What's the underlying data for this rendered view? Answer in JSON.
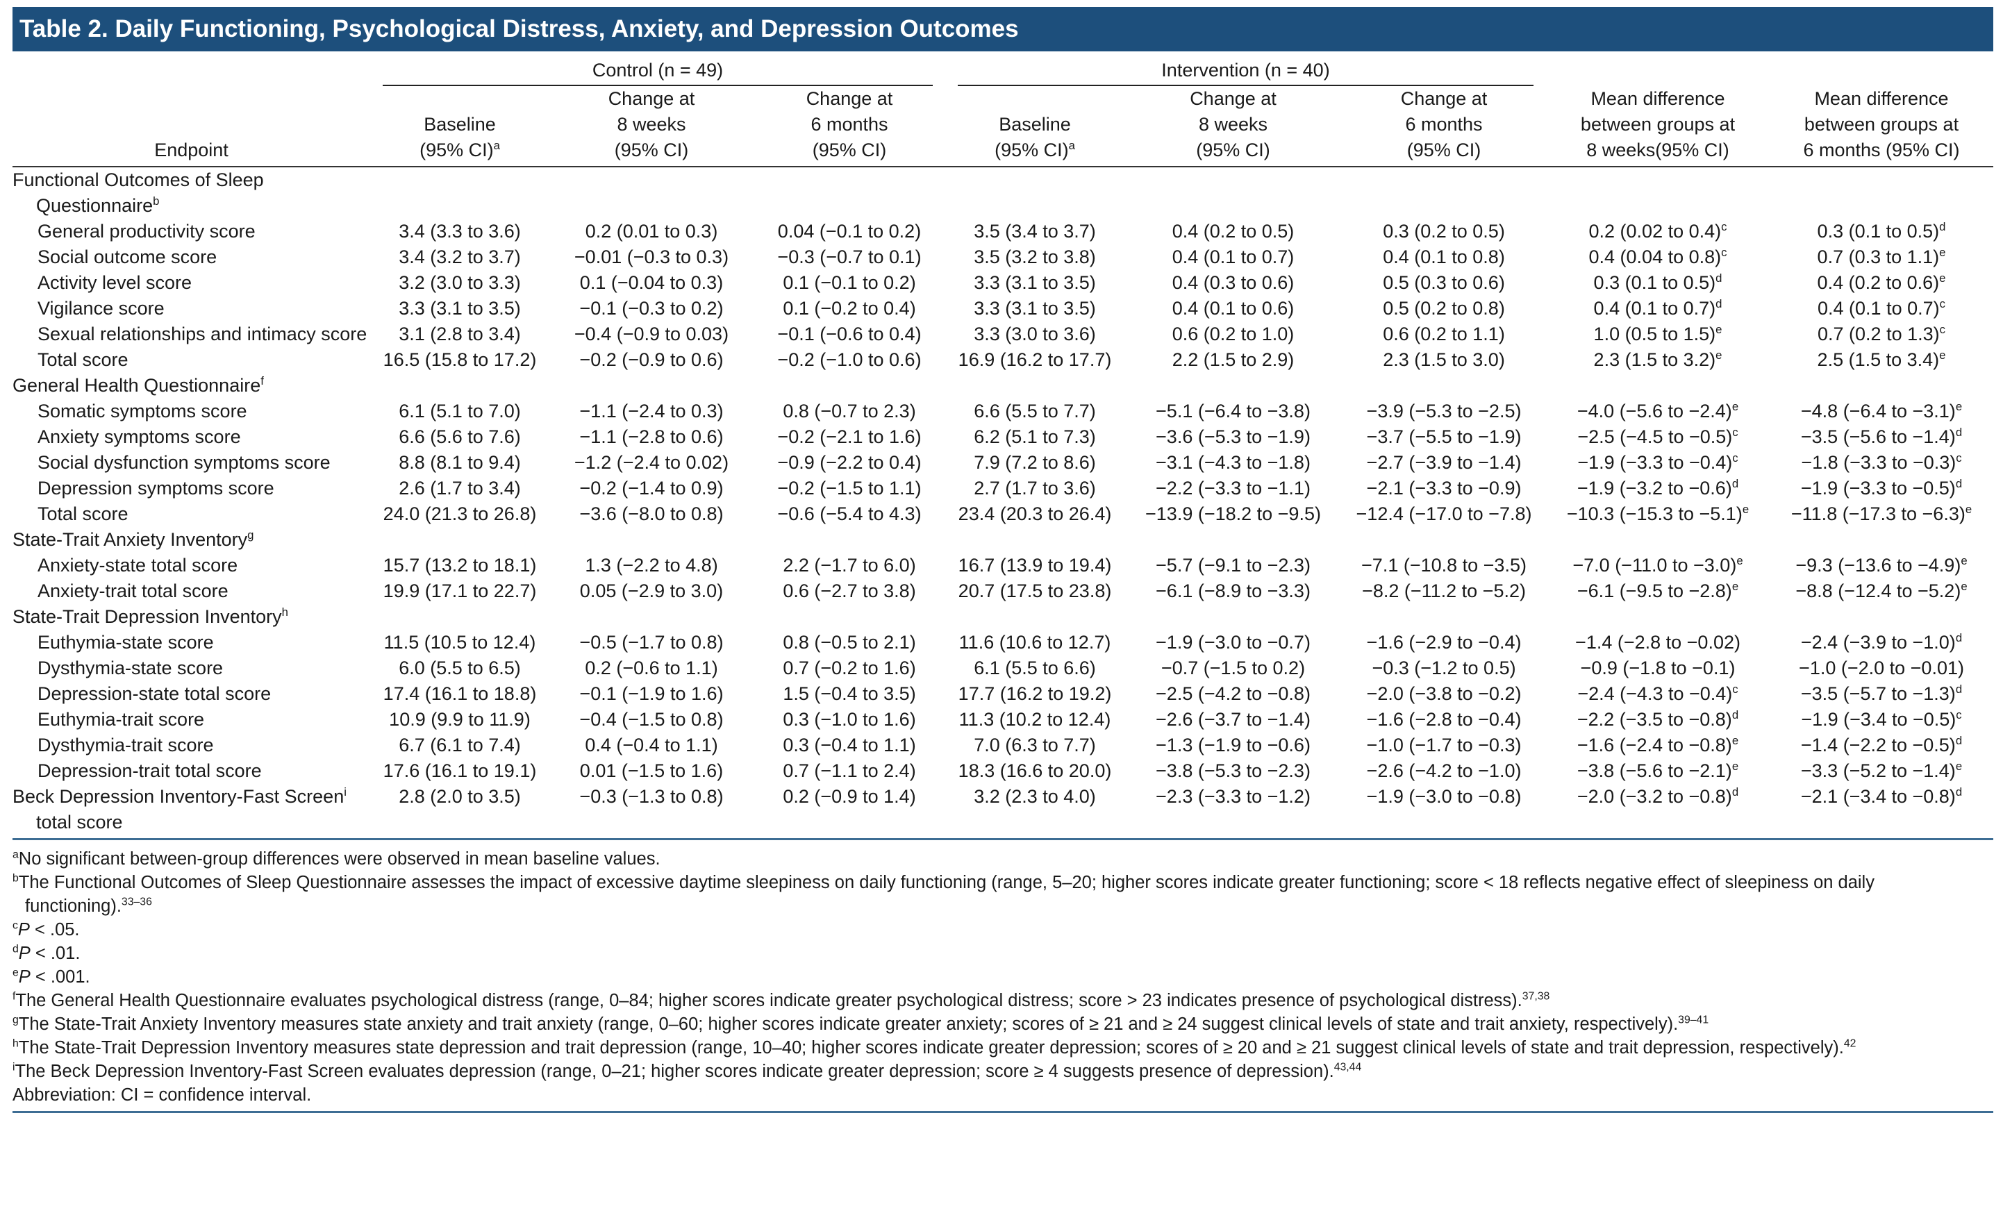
{
  "title": "Table 2. Daily Functioning, Psychological Distress, Anxiety, and Depression Outcomes",
  "table": {
    "groups": [
      "Control (n = 49)",
      "Intervention (n = 40)"
    ],
    "columns": [
      {
        "lines": [
          "Endpoint"
        ]
      },
      {
        "lines": [
          "Baseline",
          "(95% CI)"
        ],
        "sup": "a"
      },
      {
        "lines": [
          "Change at",
          "8 weeks",
          "(95% CI)"
        ]
      },
      {
        "lines": [
          "Change at",
          "6 months",
          "(95% CI)"
        ]
      },
      {
        "lines": [
          "Baseline",
          "(95% CI)"
        ],
        "sup": "a"
      },
      {
        "lines": [
          "Change at",
          "8 weeks",
          "(95% CI)"
        ]
      },
      {
        "lines": [
          "Change at",
          "6 months",
          "(95% CI)"
        ]
      },
      {
        "lines": [
          "Mean difference",
          "between groups at",
          "8 weeks(95% CI)"
        ]
      },
      {
        "lines": [
          "Mean difference",
          "between groups at",
          "6 months (95% CI)"
        ]
      }
    ],
    "rows": [
      {
        "section": {
          "text": "Functional Outcomes of Sleep Questionnaire",
          "sup": "b"
        }
      },
      {
        "label": "General productivity score",
        "cells": [
          "3.4 (3.3 to 3.6)",
          "0.2 (0.01 to 0.3)",
          "0.04 (−0.1 to 0.2)",
          "3.5 (3.4 to 3.7)",
          "0.4 (0.2 to 0.5)",
          "0.3 (0.2 to 0.5)",
          {
            "text": "0.2 (0.02 to 0.4)",
            "sup": "c"
          },
          {
            "text": "0.3 (0.1 to 0.5)",
            "sup": "d"
          }
        ]
      },
      {
        "label": "Social outcome score",
        "cells": [
          "3.4 (3.2 to 3.7)",
          "−0.01 (−0.3 to 0.3)",
          "−0.3 (−0.7 to 0.1)",
          "3.5 (3.2 to 3.8)",
          "0.4 (0.1 to 0.7)",
          "0.4 (0.1 to 0.8)",
          {
            "text": "0.4 (0.04 to 0.8)",
            "sup": "c"
          },
          {
            "text": "0.7 (0.3 to 1.1)",
            "sup": "e"
          }
        ]
      },
      {
        "label": "Activity level score",
        "cells": [
          "3.2 (3.0 to 3.3)",
          "0.1 (−0.04 to 0.3)",
          "0.1 (−0.1 to 0.2)",
          "3.3 (3.1 to 3.5)",
          "0.4 (0.3 to 0.6)",
          "0.5 (0.3 to 0.6)",
          {
            "text": "0.3 (0.1 to 0.5)",
            "sup": "d"
          },
          {
            "text": "0.4 (0.2 to 0.6)",
            "sup": "e"
          }
        ]
      },
      {
        "label": "Vigilance score",
        "cells": [
          "3.3 (3.1 to 3.5)",
          "−0.1 (−0.3 to 0.2)",
          "0.1 (−0.2 to 0.4)",
          "3.3 (3.1 to 3.5)",
          "0.4 (0.1 to 0.6)",
          "0.5 (0.2 to 0.8)",
          {
            "text": "0.4 (0.1 to 0.7)",
            "sup": "d"
          },
          {
            "text": "0.4 (0.1 to 0.7)",
            "sup": "c"
          }
        ]
      },
      {
        "label": "Sexual relationships and intimacy score",
        "cells": [
          "3.1 (2.8 to 3.4)",
          "−0.4 (−0.9 to 0.03)",
          "−0.1 (−0.6 to 0.4)",
          "3.3 (3.0 to 3.6)",
          "0.6 (0.2 to 1.0)",
          "0.6 (0.2 to 1.1)",
          {
            "text": "1.0 (0.5 to 1.5)",
            "sup": "e"
          },
          {
            "text": "0.7 (0.2 to 1.3)",
            "sup": "c"
          }
        ]
      },
      {
        "label": "Total score",
        "cells": [
          "16.5 (15.8 to 17.2)",
          "−0.2 (−0.9 to 0.6)",
          "−0.2 (−1.0 to 0.6)",
          "16.9 (16.2 to 17.7)",
          "2.2 (1.5 to 2.9)",
          "2.3 (1.5 to 3.0)",
          {
            "text": "2.3 (1.5 to 3.2)",
            "sup": "e"
          },
          {
            "text": "2.5 (1.5 to 3.4)",
            "sup": "e"
          }
        ]
      },
      {
        "section": {
          "text": "General Health Questionnaire",
          "sup": "f"
        }
      },
      {
        "label": "Somatic symptoms score",
        "cells": [
          "6.1 (5.1 to 7.0)",
          "−1.1 (−2.4 to 0.3)",
          "0.8 (−0.7 to 2.3)",
          "6.6 (5.5 to 7.7)",
          "−5.1 (−6.4 to −3.8)",
          "−3.9 (−5.3 to −2.5)",
          {
            "text": "−4.0 (−5.6 to −2.4)",
            "sup": "e"
          },
          {
            "text": "−4.8 (−6.4 to −3.1)",
            "sup": "e"
          }
        ]
      },
      {
        "label": "Anxiety symptoms score",
        "cells": [
          "6.6 (5.6 to 7.6)",
          "−1.1 (−2.8 to 0.6)",
          "−0.2 (−2.1 to 1.6)",
          "6.2 (5.1 to 7.3)",
          "−3.6 (−5.3 to −1.9)",
          "−3.7 (−5.5 to −1.9)",
          {
            "text": "−2.5 (−4.5 to −0.5)",
            "sup": "c"
          },
          {
            "text": "−3.5 (−5.6 to −1.4)",
            "sup": "d"
          }
        ]
      },
      {
        "label": "Social dysfunction symptoms score",
        "cells": [
          "8.8 (8.1 to 9.4)",
          "−1.2 (−2.4 to 0.02)",
          "−0.9 (−2.2 to 0.4)",
          "7.9 (7.2 to 8.6)",
          "−3.1 (−4.3 to −1.8)",
          "−2.7 (−3.9 to −1.4)",
          {
            "text": "−1.9 (−3.3 to −0.4)",
            "sup": "c"
          },
          {
            "text": "−1.8 (−3.3 to −0.3)",
            "sup": "c"
          }
        ]
      },
      {
        "label": "Depression symptoms score",
        "cells": [
          "2.6 (1.7 to 3.4)",
          "−0.2 (−1.4 to 0.9)",
          "−0.2 (−1.5 to 1.1)",
          "2.7 (1.7 to 3.6)",
          "−2.2 (−3.3 to −1.1)",
          "−2.1 (−3.3 to −0.9)",
          {
            "text": "−1.9 (−3.2 to −0.6)",
            "sup": "d"
          },
          {
            "text": "−1.9 (−3.3 to −0.5)",
            "sup": "d"
          }
        ]
      },
      {
        "label": "Total score",
        "cells": [
          "24.0 (21.3 to 26.8)",
          "−3.6 (−8.0 to 0.8)",
          "−0.6 (−5.4 to 4.3)",
          "23.4 (20.3 to 26.4)",
          "−13.9 (−18.2 to −9.5)",
          "−12.4 (−17.0 to −7.8)",
          {
            "text": "−10.3 (−15.3 to −5.1)",
            "sup": "e"
          },
          {
            "text": "−11.8 (−17.3 to −6.3)",
            "sup": "e"
          }
        ]
      },
      {
        "section": {
          "text": "State-Trait Anxiety Inventory",
          "sup": "g"
        }
      },
      {
        "label": "Anxiety-state total score",
        "cells": [
          "15.7 (13.2 to 18.1)",
          "1.3 (−2.2 to 4.8)",
          "2.2 (−1.7 to 6.0)",
          "16.7 (13.9 to 19.4)",
          "−5.7 (−9.1 to −2.3)",
          "−7.1 (−10.8 to −3.5)",
          {
            "text": "−7.0 (−11.0 to −3.0)",
            "sup": "e"
          },
          {
            "text": "−9.3 (−13.6 to −4.9)",
            "sup": "e"
          }
        ]
      },
      {
        "label": "Anxiety-trait total score",
        "cells": [
          "19.9 (17.1 to 22.7)",
          "0.05 (−2.9 to 3.0)",
          "0.6 (−2.7 to 3.8)",
          "20.7 (17.5 to 23.8)",
          "−6.1 (−8.9 to −3.3)",
          "−8.2 (−11.2 to −5.2)",
          {
            "text": "−6.1 (−9.5 to −2.8)",
            "sup": "e"
          },
          {
            "text": "−8.8 (−12.4 to −5.2)",
            "sup": "e"
          }
        ]
      },
      {
        "section": {
          "text": "State-Trait Depression Inventory",
          "sup": "h"
        }
      },
      {
        "label": "Euthymia-state score",
        "cells": [
          "11.5 (10.5 to 12.4)",
          "−0.5 (−1.7 to 0.8)",
          "0.8 (−0.5 to 2.1)",
          "11.6 (10.6 to 12.7)",
          "−1.9 (−3.0 to −0.7)",
          "−1.6 (−2.9 to −0.4)",
          "−1.4 (−2.8 to −0.02)",
          {
            "text": "−2.4 (−3.9 to −1.0)",
            "sup": "d"
          }
        ]
      },
      {
        "label": "Dysthymia-state score",
        "cells": [
          "6.0 (5.5 to 6.5)",
          "0.2 (−0.6 to 1.1)",
          "0.7 (−0.2 to 1.6)",
          "6.1 (5.5 to 6.6)",
          "−0.7 (−1.5 to 0.2)",
          "−0.3 (−1.2 to 0.5)",
          "−0.9 (−1.8 to −0.1)",
          "−1.0 (−2.0 to −0.01)"
        ]
      },
      {
        "label": "Depression-state total score",
        "cells": [
          "17.4 (16.1 to 18.8)",
          "−0.1 (−1.9 to 1.6)",
          "1.5 (−0.4 to 3.5)",
          "17.7 (16.2 to 19.2)",
          "−2.5 (−4.2 to −0.8)",
          "−2.0 (−3.8 to −0.2)",
          {
            "text": "−2.4 (−4.3 to −0.4)",
            "sup": "c"
          },
          {
            "text": "−3.5 (−5.7 to −1.3)",
            "sup": "d"
          }
        ]
      },
      {
        "label": "Euthymia-trait score",
        "cells": [
          "10.9 (9.9 to 11.9)",
          "−0.4 (−1.5 to 0.8)",
          "0.3 (−1.0 to 1.6)",
          "11.3 (10.2 to 12.4)",
          "−2.6 (−3.7 to −1.4)",
          "−1.6 (−2.8 to −0.4)",
          {
            "text": "−2.2 (−3.5 to −0.8)",
            "sup": "d"
          },
          {
            "text": "−1.9 (−3.4 to −0.5)",
            "sup": "c"
          }
        ]
      },
      {
        "label": "Dysthymia-trait score",
        "cells": [
          "6.7 (6.1 to 7.4)",
          "0.4 (−0.4 to 1.1)",
          "0.3 (−0.4 to 1.1)",
          "7.0 (6.3 to 7.7)",
          "−1.3 (−1.9 to −0.6)",
          "−1.0 (−1.7 to −0.3)",
          {
            "text": "−1.6 (−2.4 to −0.8)",
            "sup": "e"
          },
          {
            "text": "−1.4 (−2.2 to −0.5)",
            "sup": "d"
          }
        ]
      },
      {
        "label": "Depression-trait total score",
        "cells": [
          "17.6 (16.1 to 19.1)",
          "0.01 (−1.5 to 1.6)",
          "0.7 (−1.1 to 2.4)",
          "18.3 (16.6 to 20.0)",
          "−3.8 (−5.3 to −2.3)",
          "−2.6 (−4.2 to −1.0)",
          {
            "text": "−3.8 (−5.6 to −2.1)",
            "sup": "e"
          },
          {
            "text": "−3.3 (−5.2 to −1.4)",
            "sup": "e"
          }
        ]
      },
      {
        "section": {
          "text": "Beck Depression Inventory-Fast Screen",
          "sup": "i",
          "after": " total score"
        },
        "cells": [
          "2.8 (2.0 to 3.5)",
          "−0.3 (−1.3 to 0.8)",
          "0.2 (−0.9 to 1.4)",
          "3.2 (2.3 to 4.0)",
          "−2.3 (−3.3 to −1.2)",
          "−1.9 (−3.0 to −0.8)",
          {
            "text": "−2.0 (−3.2 to −0.8)",
            "sup": "d"
          },
          {
            "text": "−2.1 (−3.4 to −0.8)",
            "sup": "d"
          }
        ]
      }
    ]
  },
  "footnotes": [
    {
      "mark": "a",
      "text": "No significant between-group differences were observed in mean baseline values."
    },
    {
      "mark": "b",
      "text": "The Functional Outcomes of Sleep Questionnaire assesses the impact of excessive daytime sleepiness on daily functioning (range, 5–20; higher scores indicate greater functioning; score < 18 reflects negative effect of sleepiness on daily functioning).",
      "sup": "33–36"
    },
    {
      "mark": "c",
      "italic": "P",
      "text": " < .05."
    },
    {
      "mark": "d",
      "italic": "P",
      "text": " < .01."
    },
    {
      "mark": "e",
      "italic": "P",
      "text": " < .001."
    },
    {
      "mark": "f",
      "text": "The General Health Questionnaire evaluates psychological distress (range, 0–84; higher scores indicate greater psychological distress; score > 23 indicates presence of psychological distress).",
      "sup": "37,38"
    },
    {
      "mark": "g",
      "text": "The State-Trait Anxiety Inventory measures state anxiety and trait anxiety (range, 0–60; higher scores indicate greater anxiety; scores of ≥ 21 and ≥ 24 suggest clinical levels of state and trait anxiety, respectively).",
      "sup": "39–41"
    },
    {
      "mark": "h",
      "text": "The State-Trait Depression Inventory measures state depression and trait depression (range, 10–40; higher scores indicate greater depression; scores of ≥ 20 and ≥ 21 suggest clinical levels of state and trait depression, respectively).",
      "sup": "42"
    },
    {
      "mark": "i",
      "text": "The Beck Depression Inventory-Fast Screen evaluates depression (range, 0–21; higher scores indicate greater depression; score ≥ 4 suggests presence of depression).",
      "sup": "43,44"
    }
  ],
  "abbreviation": "Abbreviation: CI = confidence interval."
}
